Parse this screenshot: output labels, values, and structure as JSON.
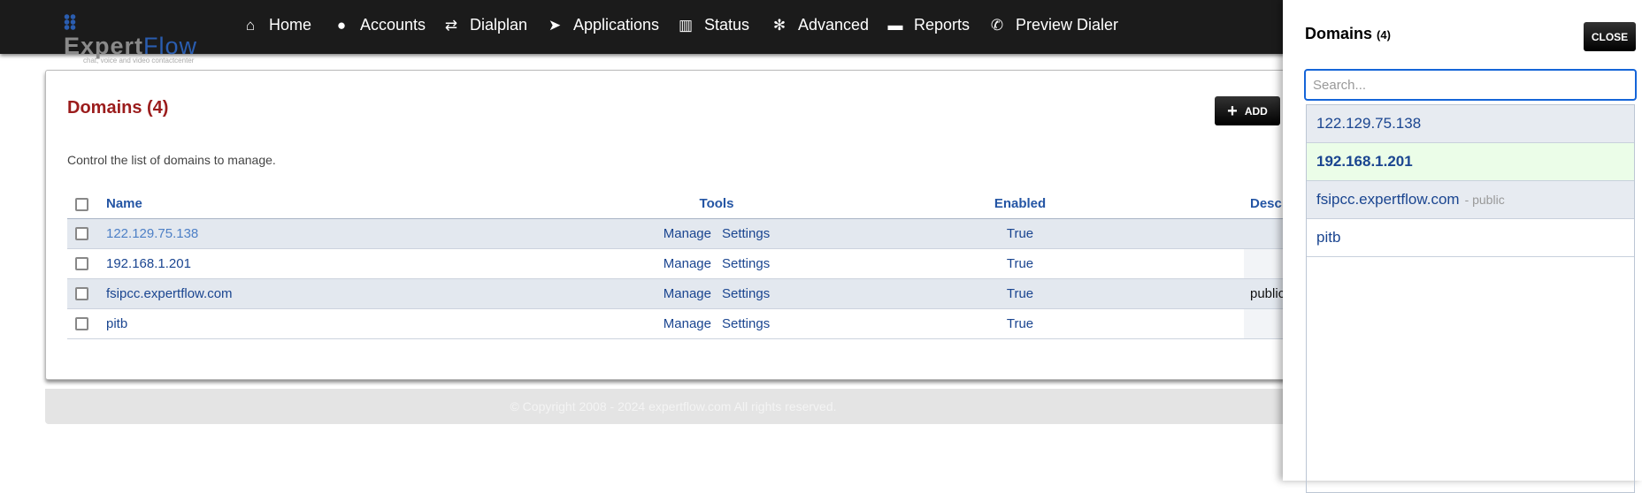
{
  "nav": {
    "logo_brand_a": "Expert",
    "logo_brand_b": "Flow",
    "logo_tagline": "chat, voice and video contactcenter",
    "items": [
      {
        "label": "Home",
        "icon": "home-icon"
      },
      {
        "label": "Accounts",
        "icon": "user-icon"
      },
      {
        "label": "Dialplan",
        "icon": "exchange-icon"
      },
      {
        "label": "Applications",
        "icon": "paper-plane-icon"
      },
      {
        "label": "Status",
        "icon": "bar-chart-icon"
      },
      {
        "label": "Advanced",
        "icon": "gear-icon"
      },
      {
        "label": "Reports",
        "icon": "report-icon"
      },
      {
        "label": "Preview Dialer",
        "icon": "phone-icon"
      }
    ]
  },
  "main": {
    "title": "Domains (4)",
    "description": "Control the list of domains to manage.",
    "add_label": "ADD",
    "columns": [
      "Name",
      "Tools",
      "Enabled",
      "Desc"
    ],
    "rows": [
      {
        "name": "122.129.75.138",
        "manage": "Manage",
        "settings": "Settings",
        "enabled": "True",
        "description": ""
      },
      {
        "name": "192.168.1.201",
        "manage": "Manage",
        "settings": "Settings",
        "enabled": "True",
        "description": ""
      },
      {
        "name": "fsipcc.expertflow.com",
        "manage": "Manage",
        "settings": "Settings",
        "enabled": "True",
        "description": "public"
      },
      {
        "name": "pitb",
        "manage": "Manage",
        "settings": "Settings",
        "enabled": "True",
        "description": ""
      }
    ]
  },
  "footer": {
    "text": "© Copyright 2008 - 2024 expertflow.com All rights reserved."
  },
  "panel": {
    "title": "Domains",
    "count": "(4)",
    "close_label": "CLOSE",
    "search_placeholder": "Search...",
    "search_value": "",
    "items": [
      {
        "name": "122.129.75.138",
        "note": ""
      },
      {
        "name": "192.168.1.201",
        "note": ""
      },
      {
        "name": "fsipcc.expertflow.com",
        "note": "- public"
      },
      {
        "name": "pitb",
        "note": ""
      }
    ],
    "selected": "192.168.1.201"
  }
}
